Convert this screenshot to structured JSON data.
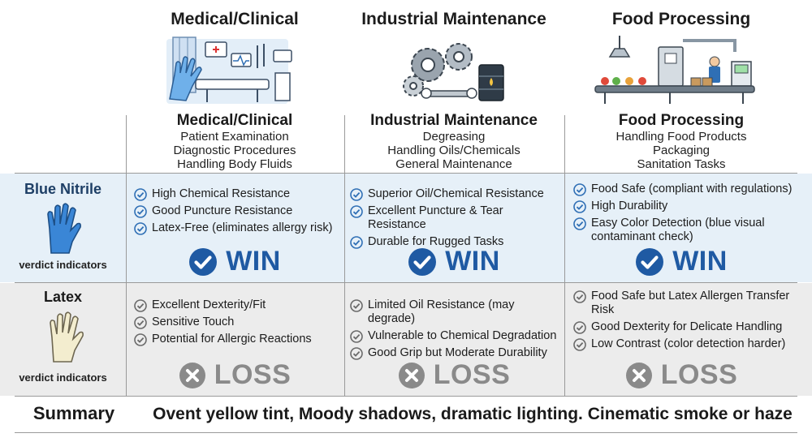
{
  "columns": [
    {
      "header": "Medical/Clinical",
      "subtitle": "Medical/Clinical",
      "tasks": [
        "Patient Examination",
        "Diagnostic Procedures",
        "Handling Body Fluids"
      ],
      "illustration": "medical-room-glove-icon"
    },
    {
      "header": "Industrial Maintenance",
      "subtitle": "Industrial Maintenance",
      "tasks": [
        "Degreasing",
        "Handling Oils/Chemicals",
        "General Maintenance"
      ],
      "illustration": "gears-wrench-barrel-icon"
    },
    {
      "header": "Food Processing",
      "subtitle": "Food Processing",
      "tasks": [
        "Handling Food Products",
        "Packaging",
        "Sanitation Tasks"
      ],
      "illustration": "food-conveyor-factory-icon"
    }
  ],
  "rows": [
    {
      "label": "Blue Nitrile",
      "verdict_indicators": "verdict indicators",
      "glove_icon": "blue-glove-icon",
      "cells": [
        {
          "items": [
            "High Chemical Resistance",
            "Good Puncture Resistance",
            "Latex-Free (eliminates allergy risk)"
          ],
          "verdict": "WIN"
        },
        {
          "items": [
            "Superior Oil/Chemical Resistance",
            "Excellent Puncture & Tear Resistance",
            "Durable for Rugged Tasks"
          ],
          "verdict": "WIN"
        },
        {
          "items": [
            "Food Safe (compliant with regulations)",
            "High Durability",
            "Easy Color Detection (blue visual contaminant check)"
          ],
          "verdict": "WIN"
        }
      ]
    },
    {
      "label": "Latex",
      "verdict_indicators": "verdict indicators",
      "glove_icon": "latex-glove-icon",
      "cells": [
        {
          "items": [
            "Excellent Dexterity/Fit",
            "Sensitive Touch",
            "Potential for Allergic Reactions"
          ],
          "verdict": "LOSS"
        },
        {
          "items": [
            "Limited Oil Resistance (may degrade)",
            "Vulnerable to Chemical Degradation",
            "Good Grip but Moderate Durability"
          ],
          "verdict": "LOSS"
        },
        {
          "items": [
            "Food Safe but Latex Allergen Transfer Risk",
            "Good Dexterity for Delicate Handling",
            "Low Contrast (color detection harder)"
          ],
          "verdict": "LOSS"
        }
      ]
    }
  ],
  "summary": {
    "label": "Summary",
    "text": "Ovent yellow tint, Moody shadows, dramatic lighting. Cinematic smoke or haze"
  },
  "colors": {
    "win_blue": "#1f5aa3",
    "check_blue": "#2f6fb5",
    "loss_grey": "#8a8a8a",
    "band_blue": "#e6f0f8",
    "band_grey": "#ececec",
    "glove_blue": "#3a86d6",
    "glove_latex": "#f3edcf"
  }
}
